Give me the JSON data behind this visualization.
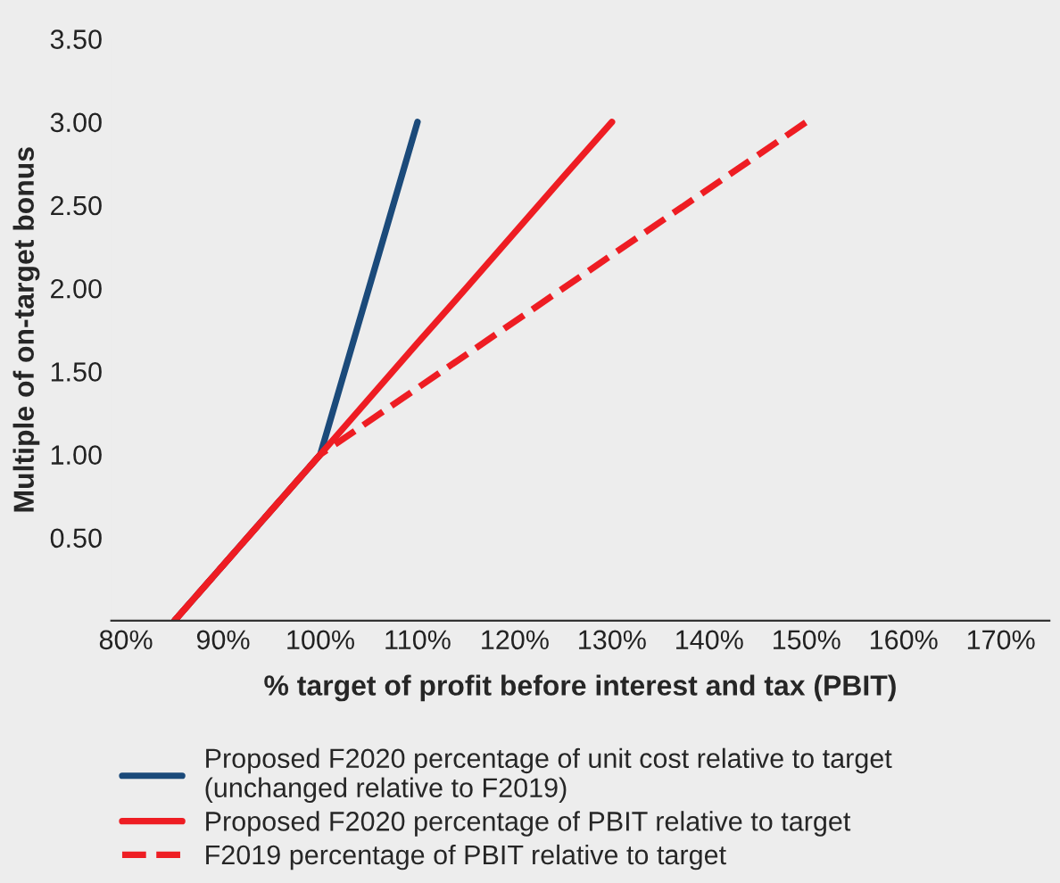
{
  "chart_data": {
    "type": "line",
    "xlabel": "% target of profit before interest and tax (PBIT)",
    "ylabel": "Multiple of on-target bonus",
    "series": [
      {
        "name": "Proposed F2020 percentage of unit cost relative to target\n(unchanged relative to F2019)",
        "color": "#1b4a7a",
        "x": [
          85,
          100,
          110
        ],
        "values": [
          0,
          1.0,
          3.0
        ],
        "line_style": "solid"
      },
      {
        "name": "Proposed F2020 percentage of PBIT relative to target",
        "color": "#ee1d23",
        "x": [
          85,
          100,
          110,
          115,
          125,
          130
        ],
        "values": [
          0,
          1.0,
          1.67,
          2.0,
          2.67,
          3.0
        ],
        "line_style": "solid"
      },
      {
        "name": "F2019 percentage of PBIT relative to target",
        "color": "#ee1d23",
        "x": [
          85,
          100,
          150
        ],
        "values": [
          0,
          1.0,
          3.0
        ],
        "line_style": "dashed"
      }
    ],
    "xlim": [
      78.5,
      175
    ],
    "ylim": [
      0,
      3.5
    ],
    "xticks": [
      {
        "value": 80,
        "label": "80%"
      },
      {
        "value": 90,
        "label": "90%"
      },
      {
        "value": 100,
        "label": "100%"
      },
      {
        "value": 110,
        "label": "110%"
      },
      {
        "value": 120,
        "label": "120%"
      },
      {
        "value": 130,
        "label": "130%"
      },
      {
        "value": 140,
        "label": "140%"
      },
      {
        "value": 150,
        "label": "150%"
      },
      {
        "value": 160,
        "label": "160%"
      },
      {
        "value": 170,
        "label": "170%"
      }
    ],
    "yticks": [
      {
        "value": 0.5,
        "label": "0.50"
      },
      {
        "value": 1.0,
        "label": "1.00"
      },
      {
        "value": 1.5,
        "label": "1.50"
      },
      {
        "value": 2.0,
        "label": "2.00"
      },
      {
        "value": 2.5,
        "label": "2.50"
      },
      {
        "value": 3.0,
        "label": "3.00"
      },
      {
        "value": 3.5,
        "label": "3.50"
      }
    ],
    "grid": false,
    "legend": "bottom"
  }
}
